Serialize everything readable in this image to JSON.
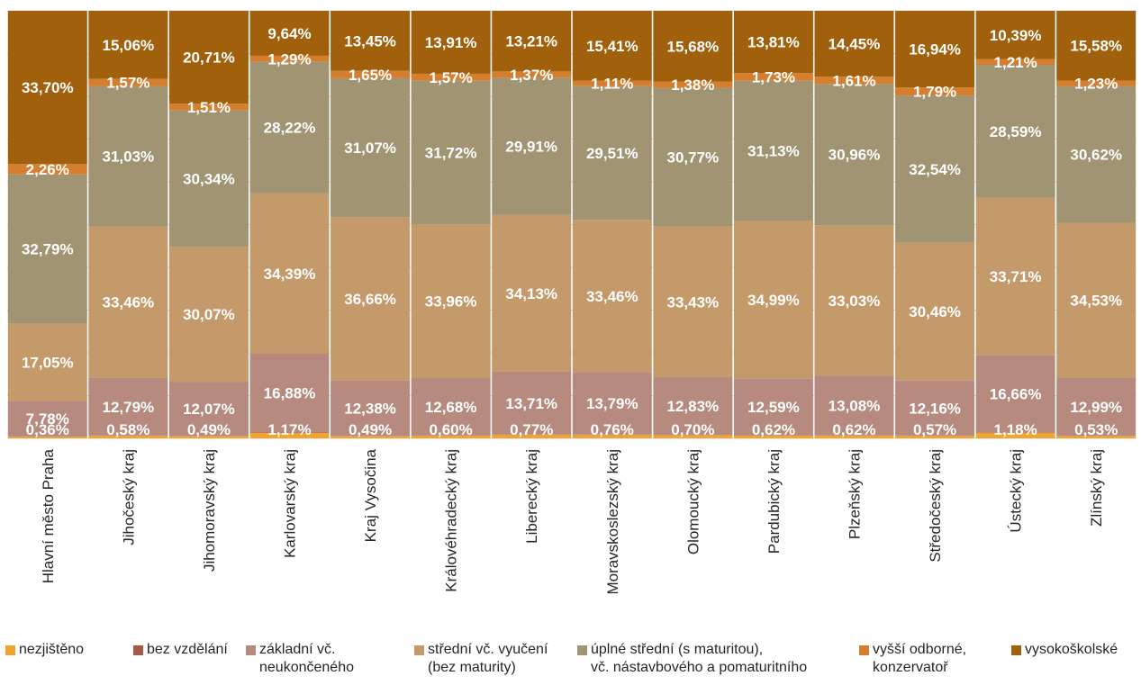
{
  "chart_data": {
    "type": "bar",
    "stacked": true,
    "percent_stacked": true,
    "orientation": "vertical",
    "categories": [
      "Hlavní město Praha",
      "Jihočeský kraj",
      "Jihomoravský kraj",
      "Karlovarský kraj",
      "Kraj Vysočina",
      "Královéhradecký kraj",
      "Liberecký kraj",
      "Moravskoslezský kraj",
      "Olomoucký kraj",
      "Pardubický kraj",
      "Plzeňský kraj",
      "Středočeský kraj",
      "Ústecký kraj",
      "Zlínský kraj"
    ],
    "series": [
      {
        "name": "nezjištěno",
        "color": "#F2A42F",
        "values": [
          0.36,
          0.58,
          0.49,
          1.17,
          0.49,
          0.6,
          0.77,
          0.76,
          0.7,
          0.62,
          0.62,
          0.57,
          1.18,
          0.53
        ],
        "labels": [
          "0,36%",
          "0,58%",
          "0,49%",
          "1,17%",
          "0,49%",
          "0,60%",
          "0,77%",
          "0,76%",
          "0,70%",
          "0,62%",
          "0,62%",
          "0,57%",
          "1,18%",
          "0,53%"
        ]
      },
      {
        "name": "bez vzdělání",
        "color": "#A55A47",
        "values": [
          0.06,
          0.04,
          0.06,
          0.09,
          0.04,
          0.04,
          0.04,
          0.07,
          0.05,
          0.05,
          0.04,
          0.05,
          0.1,
          0.04
        ],
        "labels": []
      },
      {
        "name": "základní vč.\nneukončeného",
        "color": "#B68A7E",
        "values": [
          7.78,
          12.79,
          12.07,
          16.88,
          12.38,
          12.68,
          13.71,
          13.79,
          12.83,
          12.59,
          13.08,
          12.16,
          16.66,
          12.99
        ],
        "labels": [
          "7,78%",
          "12,79%",
          "12,07%",
          "16,88%",
          "12,38%",
          "12,68%",
          "13,71%",
          "13,79%",
          "12,83%",
          "12,59%",
          "13,08%",
          "12,16%",
          "16,66%",
          "12,99%"
        ]
      },
      {
        "name": "střední vč. vyučení\n(bez maturity)",
        "color": "#C59A6B",
        "values": [
          17.05,
          33.46,
          30.07,
          34.39,
          36.66,
          33.96,
          34.13,
          33.46,
          33.43,
          34.99,
          33.03,
          30.46,
          33.71,
          34.53
        ],
        "labels": [
          "17,05%",
          "33,46%",
          "30,07%",
          "34,39%",
          "36,66%",
          "33,96%",
          "34,13%",
          "33,46%",
          "33,43%",
          "34,99%",
          "33,03%",
          "30,46%",
          "33,71%",
          "34,53%"
        ]
      },
      {
        "name": "úplné střední (s maturitou),\nvč. nástavbového a pomaturitního",
        "color": "#A09472",
        "values": [
          32.79,
          31.03,
          30.34,
          28.22,
          31.07,
          31.72,
          29.91,
          29.51,
          30.77,
          31.13,
          30.96,
          32.54,
          28.59,
          30.62
        ],
        "labels": [
          "32,79%",
          "31,03%",
          "30,34%",
          "28,22%",
          "31,07%",
          "31,72%",
          "29,91%",
          "29,51%",
          "30,77%",
          "31,13%",
          "30,96%",
          "32,54%",
          "28,59%",
          "30,62%"
        ]
      },
      {
        "name": "vyšší odborné,\nkonzervatoř",
        "color": "#D47E2E",
        "values": [
          2.26,
          1.57,
          1.51,
          1.29,
          1.65,
          1.57,
          1.37,
          1.11,
          1.38,
          1.73,
          1.61,
          1.79,
          1.21,
          1.23
        ],
        "labels": [
          "2,26%",
          "1,57%",
          "1,51%",
          "1,29%",
          "1,65%",
          "1,57%",
          "1,37%",
          "1,11%",
          "1,38%",
          "1,73%",
          "1,61%",
          "1,79%",
          "1,21%",
          "1,23%"
        ]
      },
      {
        "name": "vysokoškolské",
        "color": "#A0600C",
        "values": [
          33.7,
          15.06,
          20.71,
          9.64,
          13.45,
          13.91,
          13.21,
          15.41,
          15.68,
          13.81,
          14.45,
          16.94,
          10.39,
          15.58
        ],
        "labels": [
          "33,70%",
          "15,06%",
          "20,71%",
          "9,64%",
          "13,45%",
          "13,91%",
          "13,21%",
          "15,41%",
          "15,68%",
          "13,81%",
          "14,45%",
          "16,94%",
          "10,39%",
          "15,58%"
        ]
      }
    ],
    "ylim": [
      0,
      100
    ],
    "grid": true,
    "legend_position": "bottom",
    "title": "",
    "xlabel": "",
    "ylabel": "",
    "colors": {
      "label_text": "#FFFFFF",
      "gridline": "#D9D9D9",
      "axis_text": "#262626"
    }
  }
}
